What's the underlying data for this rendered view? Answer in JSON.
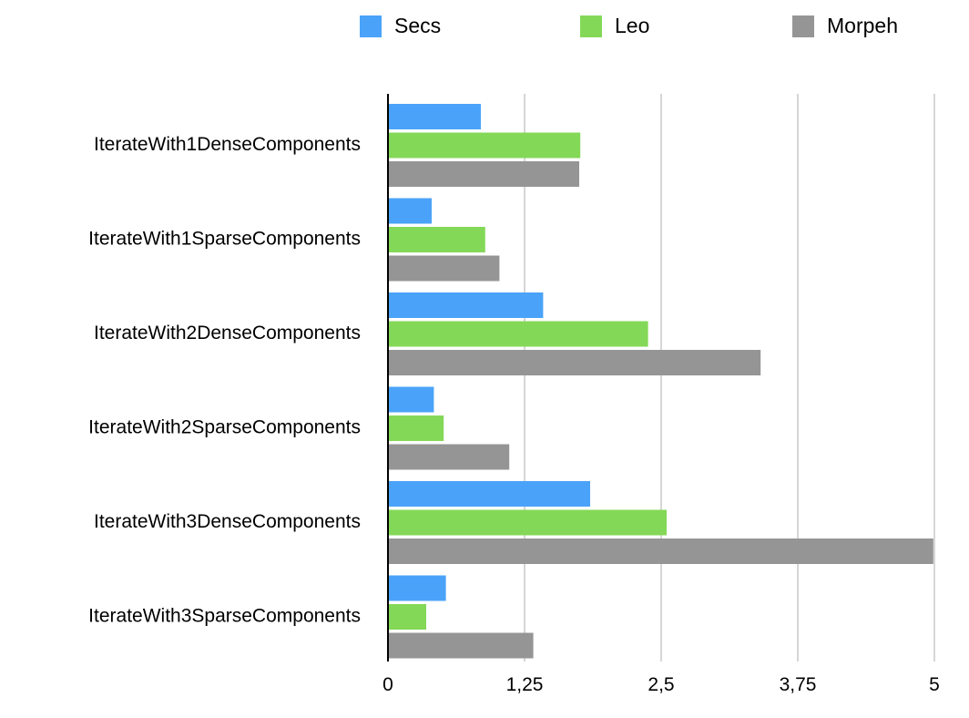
{
  "chart_data": {
    "type": "bar",
    "orientation": "horizontal",
    "categories": [
      "IterateWith1DenseComponents",
      "IterateWith1SparseComponents",
      "IterateWith2DenseComponents",
      "IterateWith2SparseComponents",
      "IterateWith3DenseComponents",
      "IterateWith3SparseComponents"
    ],
    "series": [
      {
        "name": "Secs",
        "color": "#4aa3f8",
        "values": [
          0.85,
          0.4,
          1.42,
          0.42,
          1.85,
          0.53
        ]
      },
      {
        "name": "Leo",
        "color": "#84d857",
        "values": [
          1.76,
          0.89,
          2.38,
          0.51,
          2.55,
          0.35
        ]
      },
      {
        "name": "Morpeh",
        "color": "#959595",
        "values": [
          1.75,
          1.02,
          3.41,
          1.11,
          4.99,
          1.33
        ]
      }
    ],
    "xlim": [
      0,
      5
    ],
    "xticks": [
      "0",
      "1,25",
      "2,5",
      "3,75",
      "5"
    ],
    "grid": true,
    "legend_position": "top"
  }
}
